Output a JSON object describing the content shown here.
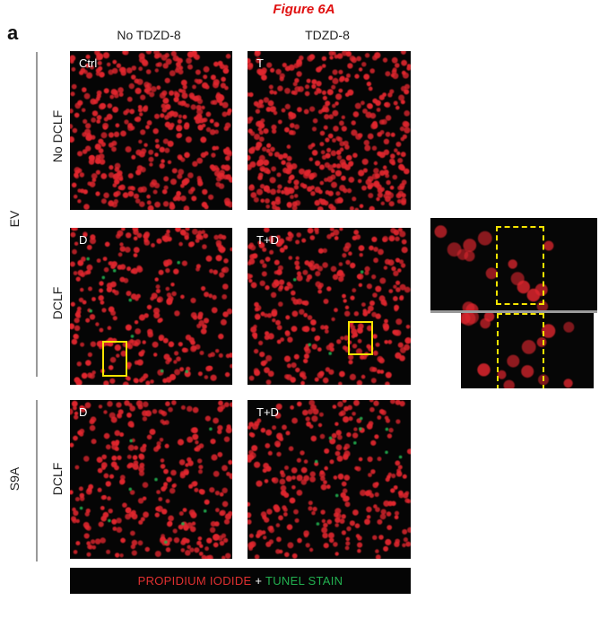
{
  "figure_title": "Figure 6A",
  "panel_letter": "a",
  "columns": [
    "No TDZD-8",
    "TDZD-8"
  ],
  "groups": [
    {
      "label": "EV",
      "rows": [
        "No DCLF",
        "DCLF"
      ]
    },
    {
      "label": "S9A",
      "rows": [
        "DCLF"
      ]
    }
  ],
  "panels": [
    {
      "label": "Ctrl",
      "dead_cells": "none"
    },
    {
      "label": "T",
      "dead_cells": "none"
    },
    {
      "label": "D",
      "dead_cells": "some"
    },
    {
      "label": "T+D",
      "dead_cells": "few"
    },
    {
      "label": "D",
      "dead_cells": "some"
    },
    {
      "label": "T+D",
      "dead_cells": "some"
    }
  ],
  "legend": {
    "stain1": "PROPIDIUM IODIDE",
    "joiner": "+",
    "stain2": "TUNEL STAIN"
  },
  "colors": {
    "title": "#e01010",
    "nuclei": "#e0282e",
    "tunel": "#22b050",
    "highlight_box": "#f5e400",
    "background": "#050505"
  }
}
